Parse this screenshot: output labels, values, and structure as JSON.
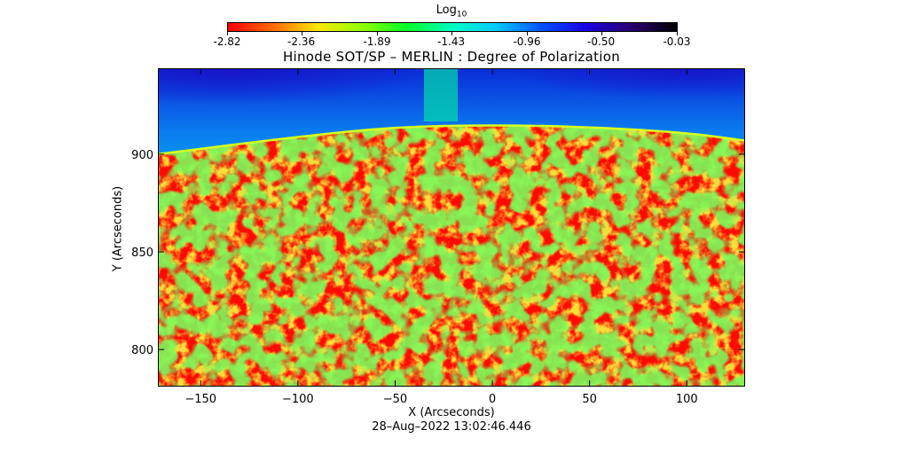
{
  "colorbar": {
    "title_main": "Log",
    "title_sub": "10",
    "colors": [
      "#ff0000",
      "#ff6a00",
      "#ffe800",
      "#90ff00",
      "#00ff2a",
      "#00ffc0",
      "#00c8ff",
      "#0050ff",
      "#1a00e0",
      "#2a0070",
      "#000000"
    ],
    "ticks": [
      "-2.82",
      "-2.36",
      "-1.89",
      "-1.43",
      "-0.96",
      "-0.50",
      "-0.03"
    ],
    "range": [
      -2.82,
      -0.03
    ]
  },
  "chart_data": {
    "type": "heatmap",
    "title": "Hinode SOT/SP – MERLIN : Degree of Polarization",
    "xlabel": "X (Arcseconds)",
    "ylabel": "Y (Arcseconds)",
    "xlim": [
      -172,
      130
    ],
    "ylim": [
      781,
      944
    ],
    "xticks": [
      -150,
      -100,
      -50,
      0,
      50,
      100
    ],
    "yticks": [
      800,
      850,
      900
    ],
    "limb": [
      {
        "x": -172,
        "y": 900
      },
      {
        "x": -100,
        "y": 909
      },
      {
        "x": -50,
        "y": 914
      },
      {
        "x": 0,
        "y": 915
      },
      {
        "x": 50,
        "y": 914
      },
      {
        "x": 100,
        "y": 911
      },
      {
        "x": 130,
        "y": 907
      }
    ]
  },
  "timestamp": "28–Aug–2022 13:02:46.446"
}
